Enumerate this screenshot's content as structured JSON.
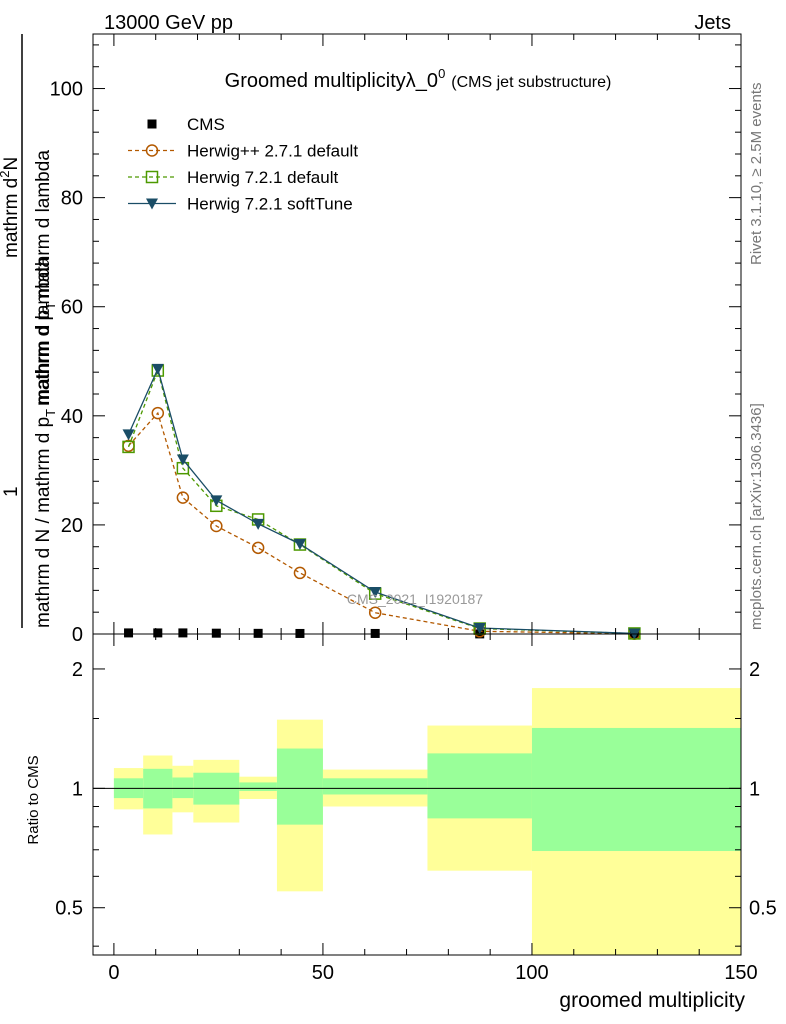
{
  "header": {
    "left": "13000 GeV pp",
    "right": "Jets"
  },
  "side_labels": {
    "rivet": "Rivet 3.1.10, ≥ 2.5M events",
    "mcplots": "mcplots.cern.ch [arXiv:1306.3436]"
  },
  "watermark": "CMS_2021_I1920187",
  "colors": {
    "cms": "#000000",
    "herwigpp": "#b35900",
    "herwig721": "#4d9900",
    "softtune": "#1a4d66",
    "band_stat": "#99ff99",
    "band_total": "#ffff99"
  },
  "chart_data": [
    {
      "type": "line",
      "title_main": "Groomed multiplicityλ_0",
      "title_sup": "0",
      "title_sub": "(CMS jet substructure)",
      "ylabel_main": "mathrm d N / mathrm d p",
      "ylabel_sub": "T",
      "ylabel_tail": "mathrm d lambda",
      "ylabel_num": "mathrm d",
      "ylabel_num_sup": "2",
      "ylabel_num_n": "N",
      "ylabel_mid": "mathrm d p",
      "ylabel_mid_sub": "T",
      "ylabel_mid_tail": "mathrm d lambda",
      "ylabel_one": "1",
      "xlim": [
        -5,
        150
      ],
      "ylim": [
        0,
        110
      ],
      "yticks": [
        0,
        20,
        40,
        60,
        80,
        100
      ],
      "ytick_labels": [
        "0",
        "20",
        "40",
        "60",
        "80",
        "100"
      ],
      "legend_position": "top-left",
      "x": [
        3.5,
        10.5,
        16.5,
        24.5,
        34.5,
        44.5,
        62.5,
        87.5,
        124.5
      ],
      "series": [
        {
          "name": "CMS",
          "marker": "filled-square",
          "values": [
            0.2,
            0.2,
            0.2,
            0.15,
            0.12,
            0.1,
            0.1,
            0.02,
            0.0
          ]
        },
        {
          "name": "Herwig++ 2.7.1 default",
          "marker": "open-circle",
          "line": "dashed",
          "values": [
            34.5,
            40.5,
            25.0,
            19.8,
            15.8,
            11.2,
            3.9,
            0.5,
            0.05
          ]
        },
        {
          "name": "Herwig 7.2.1 default",
          "marker": "open-square",
          "line": "dashed",
          "values": [
            34.3,
            48.3,
            30.4,
            23.5,
            21.0,
            16.4,
            7.4,
            1.0,
            0.1
          ]
        },
        {
          "name": "Herwig 7.2.1 softTune",
          "marker": "filled-triangle-down",
          "line": "solid",
          "values": [
            36.6,
            48.6,
            32.0,
            24.5,
            20.2,
            16.5,
            7.7,
            1.1,
            0.1
          ]
        }
      ]
    },
    {
      "type": "area",
      "ylabel": "Ratio to CMS",
      "xlabel": "groomed multiplicity",
      "xlim": [
        -5,
        150
      ],
      "ylim": [
        0.38,
        2.45
      ],
      "log_y": true,
      "xticks": [
        0,
        50,
        100,
        150
      ],
      "xtick_labels": [
        "0",
        "50",
        "100",
        "150"
      ],
      "yticks": [
        0.5,
        1,
        2
      ],
      "ytick_labels": [
        "0.5",
        "1",
        "2"
      ],
      "bins": [
        {
          "lo": 0,
          "hi": 7,
          "stat": [
            0.945,
            1.06
          ],
          "total": [
            0.885,
            1.125
          ]
        },
        {
          "lo": 7,
          "hi": 14,
          "stat": [
            0.89,
            1.12
          ],
          "total": [
            0.765,
            1.21
          ]
        },
        {
          "lo": 14,
          "hi": 19,
          "stat": [
            0.945,
            1.065
          ],
          "total": [
            0.87,
            1.14
          ]
        },
        {
          "lo": 19,
          "hi": 30,
          "stat": [
            0.91,
            1.095
          ],
          "total": [
            0.82,
            1.18
          ]
        },
        {
          "lo": 30,
          "hi": 39,
          "stat": [
            0.985,
            1.035
          ],
          "total": [
            0.94,
            1.07
          ]
        },
        {
          "lo": 39,
          "hi": 50,
          "stat": [
            0.81,
            1.26
          ],
          "total": [
            0.55,
            1.49
          ]
        },
        {
          "lo": 50,
          "hi": 75,
          "stat": [
            0.965,
            1.06
          ],
          "total": [
            0.9,
            1.115
          ]
        },
        {
          "lo": 75,
          "hi": 100,
          "stat": [
            0.84,
            1.225
          ],
          "total": [
            0.62,
            1.44
          ]
        },
        {
          "lo": 100,
          "hi": 150,
          "stat": [
            0.695,
            1.42
          ],
          "total": [
            0.38,
            1.79
          ]
        }
      ],
      "reference_line": 1
    }
  ]
}
